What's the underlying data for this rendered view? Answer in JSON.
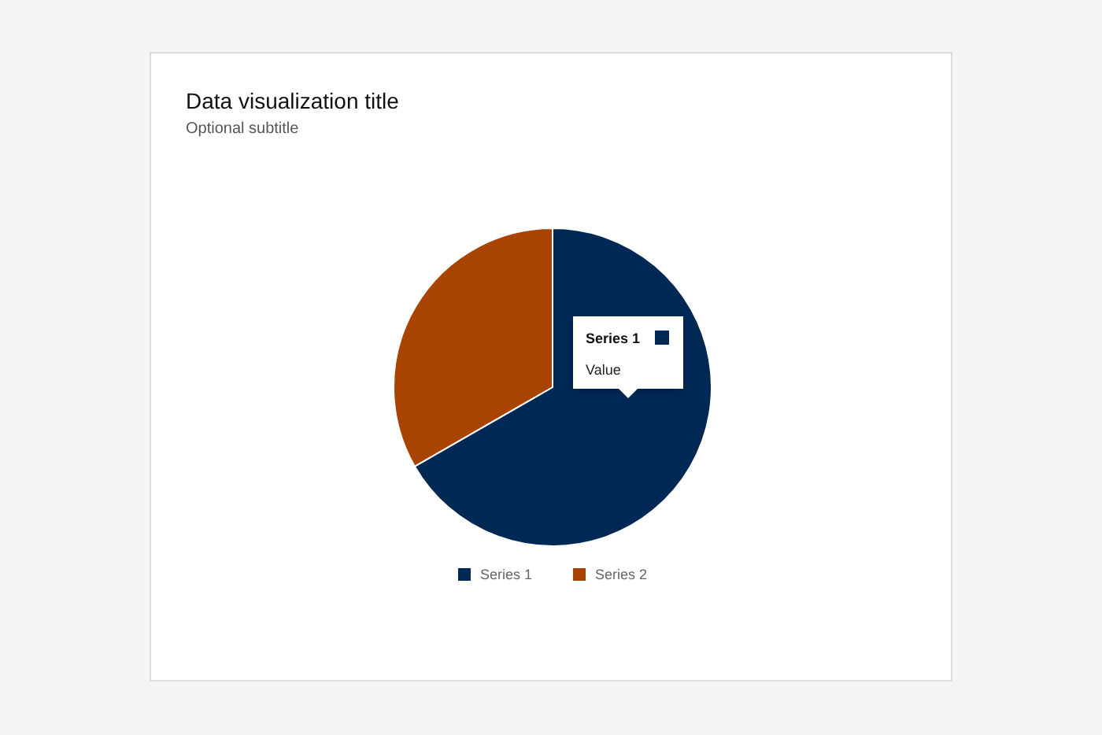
{
  "chart_data": {
    "type": "pie",
    "title": "Data visualization title",
    "subtitle": "Optional subtitle",
    "categories": [
      "Series 1",
      "Series 2"
    ],
    "values": [
      66.7,
      33.3
    ],
    "colors": [
      "#002855",
      "#a84400"
    ],
    "legend": "bottom",
    "annotations": [
      "Value"
    ]
  }
}
